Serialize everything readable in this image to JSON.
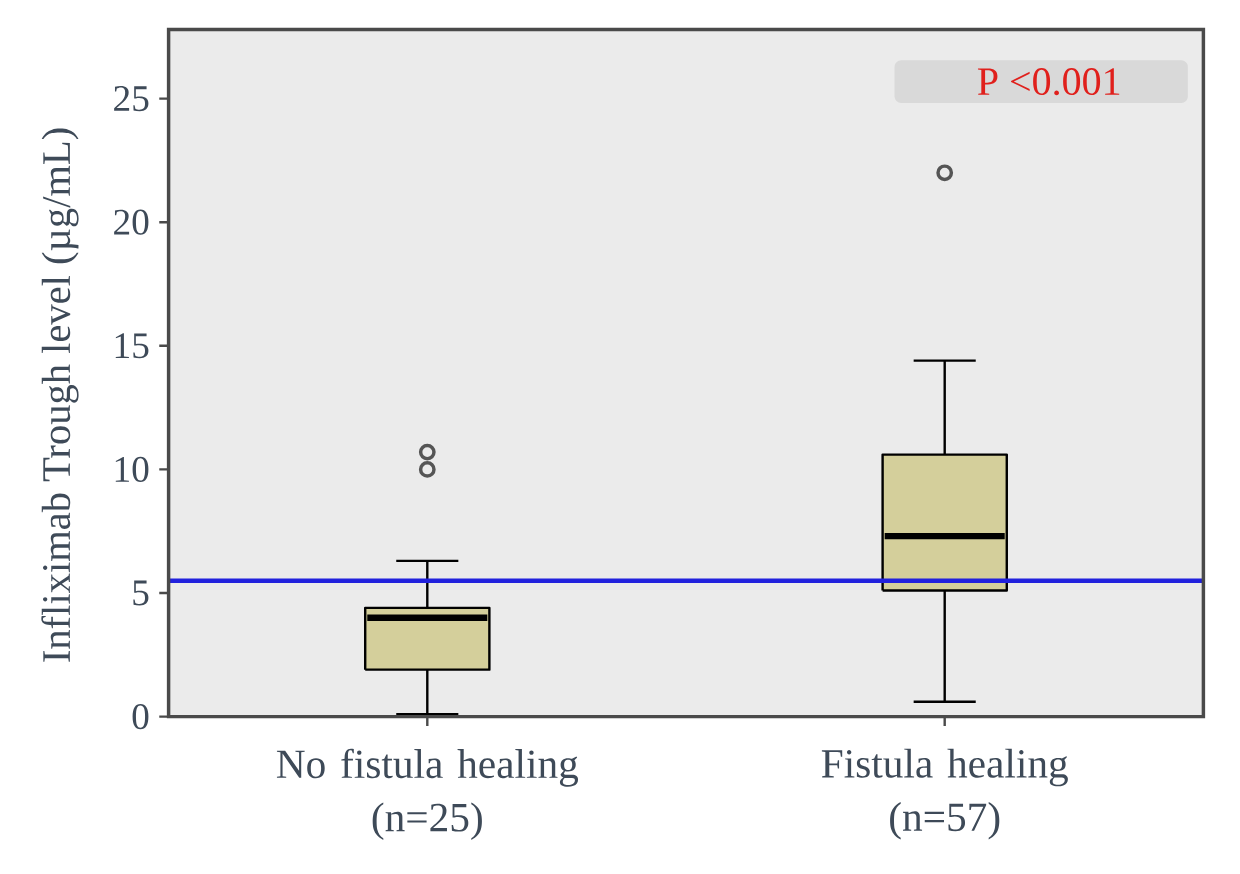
{
  "chart_data": {
    "type": "box",
    "ylabel": "Infliximab Trough level (µg/mL)",
    "categories": [
      "No fistula healing (n=25)",
      "Fistula healing (n=57)"
    ],
    "boxes": [
      {
        "low": 0.1,
        "q1": 1.9,
        "median": 4.0,
        "q3": 4.4,
        "high": 6.3,
        "outliers": [
          10.0,
          10.7
        ]
      },
      {
        "low": 0.6,
        "q1": 5.1,
        "median": 7.3,
        "q3": 10.6,
        "high": 14.4,
        "outliers": [
          22.0
        ]
      }
    ],
    "color": "#d4cf9b",
    "ylim": [
      0,
      27.8
    ],
    "yticks": [
      0,
      5,
      10,
      15,
      20,
      25
    ],
    "ref_lines": [
      {
        "axis": "y",
        "value": 5.5,
        "color": "#2121dd"
      }
    ],
    "annotations": [
      "P <0.001"
    ]
  }
}
